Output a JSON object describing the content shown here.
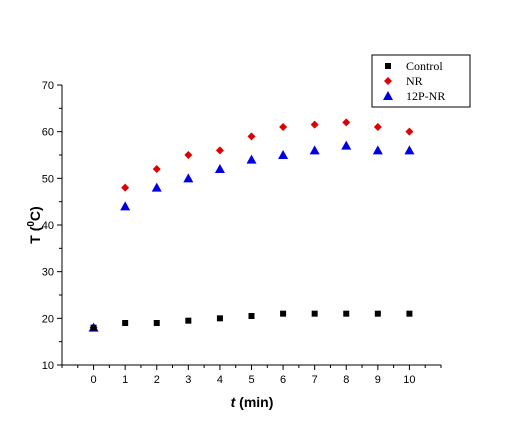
{
  "chart_data": {
    "type": "scatter",
    "title": "",
    "xlabel_italic": "t",
    "xlabel_rest": " (min)",
    "ylabel_main": "T (",
    "ylabel_sup": "0",
    "ylabel_end": "C)",
    "xlim": [
      -1,
      11
    ],
    "ylim": [
      10,
      70
    ],
    "x_ticks": [
      0,
      1,
      2,
      3,
      4,
      5,
      6,
      7,
      8,
      9,
      10
    ],
    "y_ticks": [
      10,
      20,
      30,
      40,
      50,
      60,
      70
    ],
    "grid": false,
    "legend_position": "top-right",
    "x": [
      0,
      1,
      2,
      3,
      4,
      5,
      6,
      7,
      8,
      9,
      10
    ],
    "series": [
      {
        "name": "Control",
        "marker": "square",
        "color": "#000000",
        "values": [
          18,
          19,
          19,
          19.5,
          20,
          20.5,
          21,
          21,
          21,
          21,
          21
        ]
      },
      {
        "name": "NR",
        "marker": "diamond",
        "color": "#e00000",
        "values": [
          18,
          48,
          52,
          55,
          56,
          59,
          61,
          61.5,
          62,
          61,
          60
        ]
      },
      {
        "name": "12P-NR",
        "marker": "triangle",
        "color": "#0000e0",
        "values": [
          18,
          44,
          48,
          50,
          52,
          54,
          55,
          56,
          57,
          56,
          56
        ]
      }
    ]
  }
}
